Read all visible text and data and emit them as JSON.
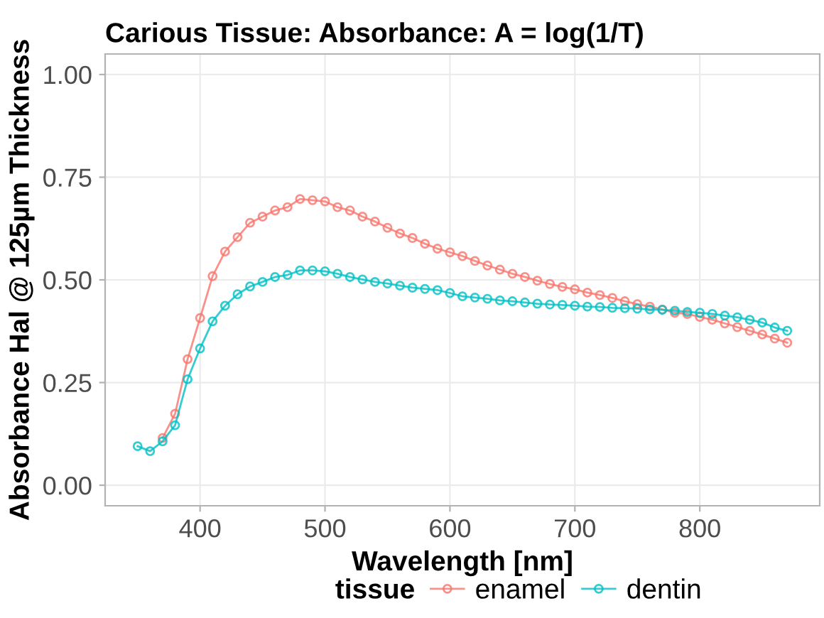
{
  "chart_data": {
    "type": "line",
    "title": "Carious Tissue: Absorbance: A = log(1/T)",
    "xlabel": "Wavelength [nm]",
    "ylabel": "Absorbance Hal @ 125µm Thickness",
    "legend_title": "tissue",
    "x": [
      350,
      360,
      370,
      380,
      390,
      400,
      410,
      420,
      430,
      440,
      450,
      460,
      470,
      480,
      490,
      500,
      510,
      520,
      530,
      540,
      550,
      560,
      570,
      580,
      590,
      600,
      610,
      620,
      630,
      640,
      650,
      660,
      670,
      680,
      690,
      700,
      710,
      720,
      730,
      740,
      750,
      760,
      770,
      780,
      790,
      800,
      810,
      820,
      830,
      840,
      850,
      860,
      870
    ],
    "series": [
      {
        "name": "enamel",
        "color": "#f8766d",
        "values": [
          null,
          null,
          0.115,
          0.174,
          0.307,
          0.407,
          0.509,
          0.569,
          0.604,
          0.639,
          0.654,
          0.669,
          0.677,
          0.697,
          0.694,
          0.691,
          0.677,
          0.669,
          0.654,
          0.642,
          0.627,
          0.613,
          0.602,
          0.588,
          0.576,
          0.567,
          0.558,
          0.546,
          0.535,
          0.525,
          0.515,
          0.507,
          0.498,
          0.49,
          0.483,
          0.477,
          0.469,
          0.463,
          0.456,
          0.448,
          0.441,
          0.435,
          0.428,
          0.42,
          0.417,
          0.41,
          0.403,
          0.394,
          0.385,
          0.376,
          0.367,
          0.357,
          0.347
        ]
      },
      {
        "name": "dentin",
        "color": "#00bfc4",
        "values": [
          0.095,
          0.083,
          0.107,
          0.146,
          0.258,
          0.333,
          0.399,
          0.437,
          0.465,
          0.484,
          0.495,
          0.507,
          0.512,
          0.523,
          0.523,
          0.521,
          0.515,
          0.507,
          0.501,
          0.495,
          0.491,
          0.486,
          0.481,
          0.478,
          0.475,
          0.468,
          0.46,
          0.457,
          0.454,
          0.45,
          0.448,
          0.445,
          0.442,
          0.44,
          0.439,
          0.437,
          0.435,
          0.434,
          0.432,
          0.431,
          0.43,
          0.428,
          0.427,
          0.425,
          0.422,
          0.42,
          0.417,
          0.413,
          0.409,
          0.403,
          0.396,
          0.384,
          0.376
        ]
      }
    ],
    "xlim": [
      324,
      896
    ],
    "xticks": [
      400,
      500,
      600,
      700,
      800
    ],
    "ylim": [
      -0.05,
      1.05
    ],
    "yticks": [
      {
        "value": 0,
        "label": "0.00"
      },
      {
        "value": 0.25,
        "label": "0.25"
      },
      {
        "value": 0.5,
        "label": "0.50"
      },
      {
        "value": 0.75,
        "label": "0.75"
      },
      {
        "value": 1,
        "label": "1.00"
      }
    ],
    "grid": true,
    "legend": "bottom",
    "marker": "circle",
    "line_style": "solid"
  }
}
